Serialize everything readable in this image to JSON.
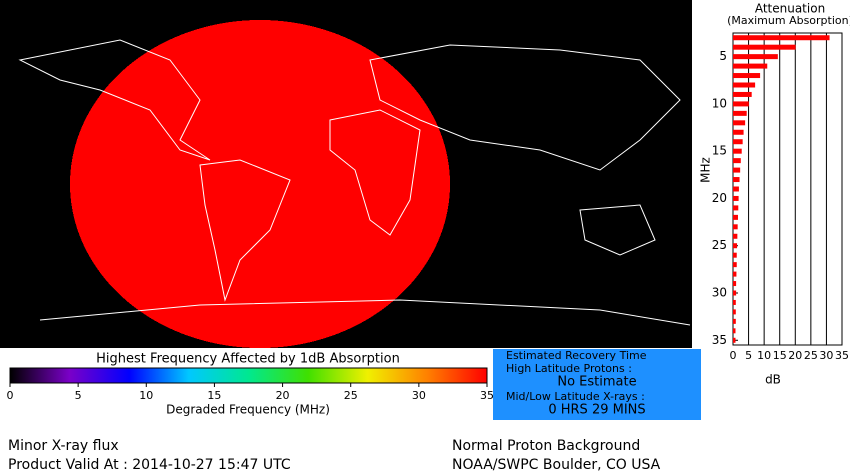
{
  "chart_data": {
    "type": "hbar",
    "title": "Attenuation",
    "subtitle": "(Maximum Absorption)",
    "y_label": "MHz",
    "x_label": "dB",
    "color": "#ff0000",
    "y_inverted": true,
    "y": [
      3,
      4,
      5,
      6,
      7,
      8,
      9,
      10,
      11,
      12,
      13,
      14,
      15,
      16,
      17,
      18,
      19,
      20,
      21,
      22,
      23,
      24,
      25,
      26,
      27,
      28,
      29,
      30,
      31,
      32,
      33,
      34,
      35
    ],
    "values": [
      31.0,
      20.1,
      14.4,
      11.0,
      8.7,
      7.1,
      6.0,
      5.1,
      4.4,
      3.9,
      3.4,
      3.1,
      2.8,
      2.5,
      2.3,
      2.1,
      1.9,
      1.8,
      1.7,
      1.6,
      1.5,
      1.4,
      1.3,
      1.2,
      1.2,
      1.1,
      1.0,
      1.0,
      0.9,
      0.9,
      0.9,
      0.8,
      0.8
    ],
    "xlim": [
      0,
      35
    ],
    "xticks": [
      0,
      5,
      10,
      15,
      20,
      25,
      30,
      35
    ],
    "ylim": [
      2.5,
      35.5
    ],
    "yticks": [
      5,
      10,
      15,
      20,
      25,
      30,
      35
    ],
    "grid": true
  },
  "colorbar": {
    "title": "Highest Frequency Affected by 1dB Absorption",
    "label": "Degraded Frequency (MHz)",
    "lim": [
      0,
      35
    ],
    "ticks": [
      0,
      5,
      10,
      15,
      20,
      25,
      30,
      35
    ],
    "colors": [
      "#000000",
      "#7a00c8",
      "#0000ff",
      "#00c8ff",
      "#00e890",
      "#40e000",
      "#f0f000",
      "#ff8000",
      "#ff0000"
    ]
  },
  "recovery": {
    "title": "Estimated Recovery Time",
    "high_label": "High Latitude Protons :",
    "high_value": "No Estimate",
    "low_label": "Mid/Low Latitude X-rays :",
    "low_value": "0 HRS 29 MINS"
  },
  "footer": {
    "left_1": "Minor X-ray flux",
    "left_2": "Product Valid At : 2014-10-27 15:47 UTC",
    "right_1": "Normal Proton Background",
    "right_2": "NOAA/SWPC Boulder, CO USA"
  }
}
